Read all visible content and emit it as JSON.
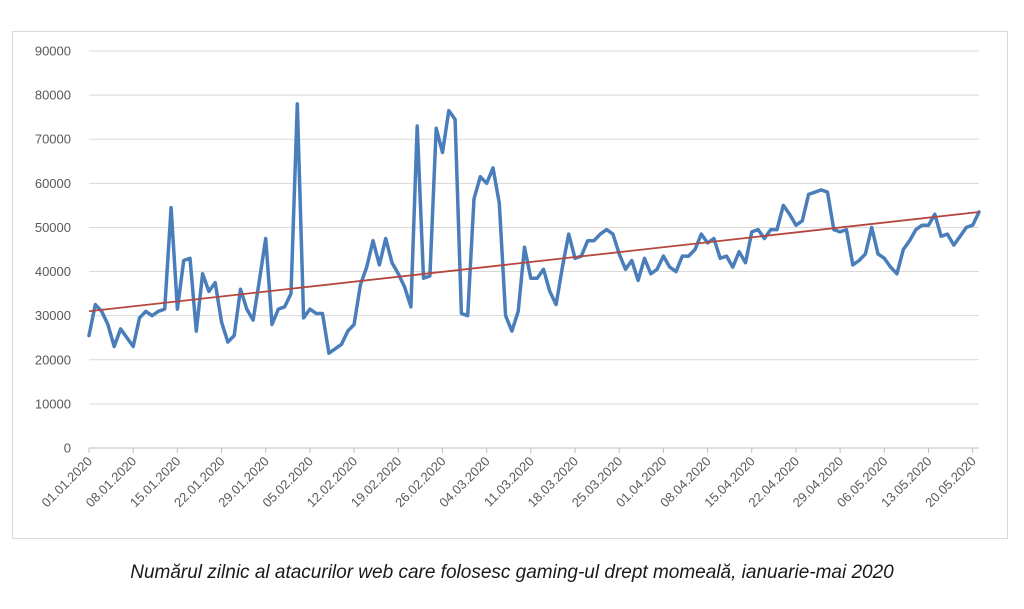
{
  "chart_data": {
    "type": "line",
    "title": "",
    "xlabel": "",
    "ylabel": "",
    "ylim": [
      0,
      90000
    ],
    "y_ticks": [
      0,
      10000,
      20000,
      30000,
      40000,
      50000,
      60000,
      70000,
      80000,
      90000
    ],
    "y_tick_labels": [
      "0",
      "10000",
      "20000",
      "30000",
      "40000",
      "50000",
      "60000",
      "70000",
      "80000",
      "90000"
    ],
    "x_tick_labels": [
      "01.01.2020",
      "08.01.2020",
      "15.01.2020",
      "22.01.2020",
      "29.01.2020",
      "05.02.2020",
      "12.02.2020",
      "19.02.2020",
      "26.02.2020",
      "04.03.2020",
      "11.03.2020",
      "18.03.2020",
      "25.03.2020",
      "01.04.2020",
      "08.04.2020",
      "15.04.2020",
      "22.04.2020",
      "29.04.2020",
      "06.05.2020",
      "13.05.2020",
      "20.05.2020"
    ],
    "grid": true,
    "legend": "none",
    "series": [
      {
        "color": "#4a7ebb",
        "values": [
          25500,
          32500,
          31000,
          28000,
          23000,
          27000,
          25000,
          23000,
          29500,
          31000,
          30000,
          31000,
          31500,
          54500,
          31500,
          42500,
          43000,
          26500,
          39500,
          35500,
          37500,
          28500,
          24000,
          25500,
          36000,
          31500,
          29000,
          38000,
          47500,
          28000,
          31500,
          32000,
          35000,
          78000,
          29500,
          31500,
          30500,
          30500,
          21500,
          22500,
          23500,
          26500,
          28000,
          37000,
          41000,
          47000,
          41500,
          47500,
          42000,
          39500,
          36500,
          32000,
          73000,
          38500,
          39000,
          72500,
          67000,
          76500,
          74500,
          30500,
          30000,
          56500,
          61500,
          60000,
          63500,
          55500,
          30000,
          26500,
          31000,
          45500,
          38500,
          38500,
          40500,
          35500,
          32500,
          41000,
          48500,
          43000,
          43500,
          47000,
          47000,
          48500,
          49500,
          48500,
          44000,
          40500,
          42500,
          38000,
          43000,
          39500,
          40500,
          43500,
          41000,
          40000,
          43500,
          43500,
          45000,
          48500,
          46500,
          47500,
          43000,
          43500,
          41000,
          44500,
          42000,
          49000,
          49500,
          47500,
          49500,
          49500,
          55000,
          53000,
          50500,
          51500,
          57500,
          58000,
          58500,
          58000,
          49500,
          49000,
          49500,
          41500,
          42500,
          44000,
          50000,
          44000,
          43000,
          41000,
          39500,
          45000,
          47000,
          49500,
          50500,
          50500,
          53000,
          48000,
          48500,
          46000,
          48000,
          50000,
          50500,
          53500
        ]
      },
      {
        "color": "#b5473f",
        "line_style": "trendline",
        "start": 31000,
        "end": 53500
      }
    ]
  },
  "caption": "Numărul zilnic al atacurilor web care folosesc gaming-ul drept momeală, ianuarie-mai 2020"
}
